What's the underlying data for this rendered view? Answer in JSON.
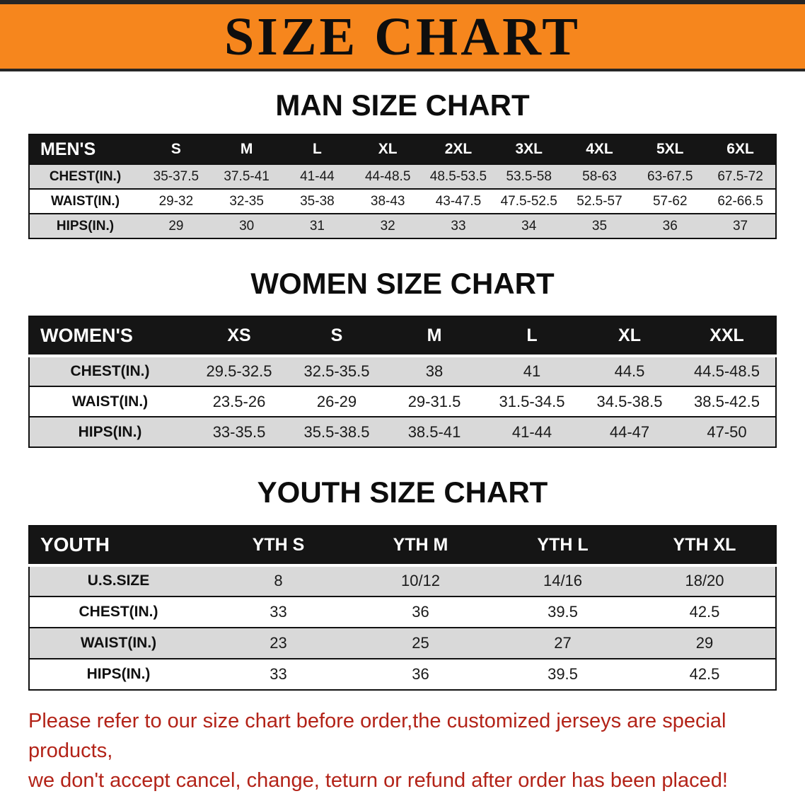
{
  "banner": {
    "title": "SIZE CHART"
  },
  "colors": {
    "banner_bg": "#F6861D",
    "header_row_bg": "#151515",
    "gray_row_bg": "#D9D9D9",
    "note_text": "#B32318"
  },
  "sections": [
    {
      "id": "men",
      "heading": "MAN SIZE CHART",
      "table": {
        "header": [
          "MEN'S",
          "S",
          "M",
          "L",
          "XL",
          "2XL",
          "3XL",
          "4XL",
          "5XL",
          "6XL"
        ],
        "rows": [
          {
            "label": "CHEST(IN.)",
            "values": [
              "35-37.5",
              "37.5-41",
              "41-44",
              "44-48.5",
              "48.5-53.5",
              "53.5-58",
              "58-63",
              "63-67.5",
              "67.5-72"
            ]
          },
          {
            "label": "WAIST(IN.)",
            "values": [
              "29-32",
              "32-35",
              "35-38",
              "38-43",
              "43-47.5",
              "47.5-52.5",
              "52.5-57",
              "57-62",
              "62-66.5"
            ]
          },
          {
            "label": "HIPS(IN.)",
            "values": [
              "29",
              "30",
              "31",
              "32",
              "33",
              "34",
              "35",
              "36",
              "37"
            ]
          }
        ]
      }
    },
    {
      "id": "women",
      "heading": "WOMEN SIZE CHART",
      "table": {
        "header": [
          "WOMEN'S",
          "XS",
          "S",
          "M",
          "L",
          "XL",
          "XXL"
        ],
        "rows": [
          {
            "label": "CHEST(IN.)",
            "values": [
              "29.5-32.5",
              "32.5-35.5",
              "38",
              "41",
              "44.5",
              "44.5-48.5"
            ]
          },
          {
            "label": "WAIST(IN.)",
            "values": [
              "23.5-26",
              "26-29",
              "29-31.5",
              "31.5-34.5",
              "34.5-38.5",
              "38.5-42.5"
            ]
          },
          {
            "label": "HIPS(IN.)",
            "values": [
              "33-35.5",
              "35.5-38.5",
              "38.5-41",
              "41-44",
              "44-47",
              "47-50"
            ]
          }
        ]
      }
    },
    {
      "id": "youth",
      "heading": "YOUTH SIZE CHART",
      "table": {
        "header": [
          "YOUTH",
          "YTH S",
          "YTH M",
          "YTH L",
          "YTH XL"
        ],
        "rows": [
          {
            "label": "U.S.SIZE",
            "values": [
              "8",
              "10/12",
              "14/16",
              "18/20"
            ]
          },
          {
            "label": "CHEST(IN.)",
            "values": [
              "33",
              "36",
              "39.5",
              "42.5"
            ]
          },
          {
            "label": "WAIST(IN.)",
            "values": [
              "23",
              "25",
              "27",
              "29"
            ]
          },
          {
            "label": "HIPS(IN.)",
            "values": [
              "33",
              "36",
              "39.5",
              "42.5"
            ]
          }
        ]
      }
    }
  ],
  "footer": {
    "line1": "Please refer to our size chart before order,the customized jerseys are special products,",
    "line2": "we don't accept cancel, change, teturn or refund after order has been placed!"
  }
}
